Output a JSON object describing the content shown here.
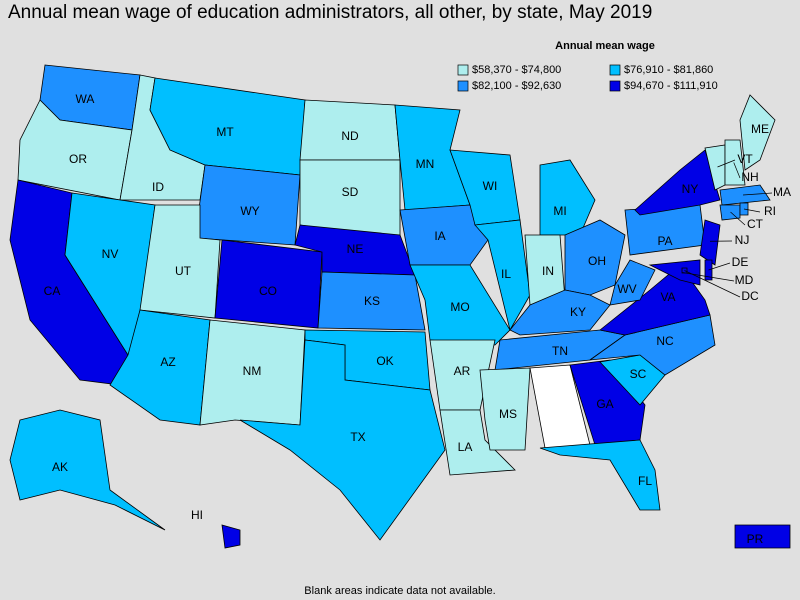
{
  "title": "Annual mean wage of education administrators, all other, by state, May 2019",
  "legend": {
    "title": "Annual mean wage",
    "bins": [
      {
        "label": "$58,370 - $74,800",
        "color": "#aeeeee"
      },
      {
        "label": "$76,910 - $81,860",
        "color": "#00bfff"
      },
      {
        "label": "$82,100 - $92,630",
        "color": "#1e90ff"
      },
      {
        "label": "$94,670 - $111,910",
        "color": "#0000e6"
      }
    ]
  },
  "states": [
    {
      "abbr": "WA",
      "bin": 2
    },
    {
      "abbr": "OR",
      "bin": 0
    },
    {
      "abbr": "CA",
      "bin": 3
    },
    {
      "abbr": "ID",
      "bin": 0
    },
    {
      "abbr": "NV",
      "bin": 1
    },
    {
      "abbr": "MT",
      "bin": 1
    },
    {
      "abbr": "WY",
      "bin": 2
    },
    {
      "abbr": "UT",
      "bin": 0
    },
    {
      "abbr": "AZ",
      "bin": 1
    },
    {
      "abbr": "CO",
      "bin": 3
    },
    {
      "abbr": "NM",
      "bin": 0
    },
    {
      "abbr": "ND",
      "bin": 0
    },
    {
      "abbr": "SD",
      "bin": 0
    },
    {
      "abbr": "NE",
      "bin": 3
    },
    {
      "abbr": "KS",
      "bin": 2
    },
    {
      "abbr": "OK",
      "bin": 1
    },
    {
      "abbr": "TX",
      "bin": 1
    },
    {
      "abbr": "MN",
      "bin": 1
    },
    {
      "abbr": "IA",
      "bin": 2
    },
    {
      "abbr": "MO",
      "bin": 1
    },
    {
      "abbr": "AR",
      "bin": 0
    },
    {
      "abbr": "LA",
      "bin": 0
    },
    {
      "abbr": "WI",
      "bin": 1
    },
    {
      "abbr": "IL",
      "bin": 1
    },
    {
      "abbr": "MI",
      "bin": 1
    },
    {
      "abbr": "IN",
      "bin": 0
    },
    {
      "abbr": "OH",
      "bin": 2
    },
    {
      "abbr": "KY",
      "bin": 2
    },
    {
      "abbr": "TN",
      "bin": 2
    },
    {
      "abbr": "MS",
      "bin": 0
    },
    {
      "abbr": "GA",
      "bin": 3
    },
    {
      "abbr": "FL",
      "bin": 1
    },
    {
      "abbr": "SC",
      "bin": 1
    },
    {
      "abbr": "NC",
      "bin": 2
    },
    {
      "abbr": "VA",
      "bin": 3
    },
    {
      "abbr": "WV",
      "bin": 2
    },
    {
      "abbr": "PA",
      "bin": 2
    },
    {
      "abbr": "NY",
      "bin": 3
    },
    {
      "abbr": "NJ",
      "bin": 3
    },
    {
      "abbr": "DE",
      "bin": 3
    },
    {
      "abbr": "MD",
      "bin": 3
    },
    {
      "abbr": "DC",
      "bin": 3
    },
    {
      "abbr": "VT",
      "bin": 0
    },
    {
      "abbr": "NH",
      "bin": 0
    },
    {
      "abbr": "ME",
      "bin": 0
    },
    {
      "abbr": "MA",
      "bin": 2
    },
    {
      "abbr": "CT",
      "bin": 2
    },
    {
      "abbr": "RI",
      "bin": 2
    },
    {
      "abbr": "AK",
      "bin": 1
    },
    {
      "abbr": "HI",
      "bin": 3
    },
    {
      "abbr": "PR",
      "bin": 3
    }
  ],
  "footnote": "Blank areas indicate data not available."
}
